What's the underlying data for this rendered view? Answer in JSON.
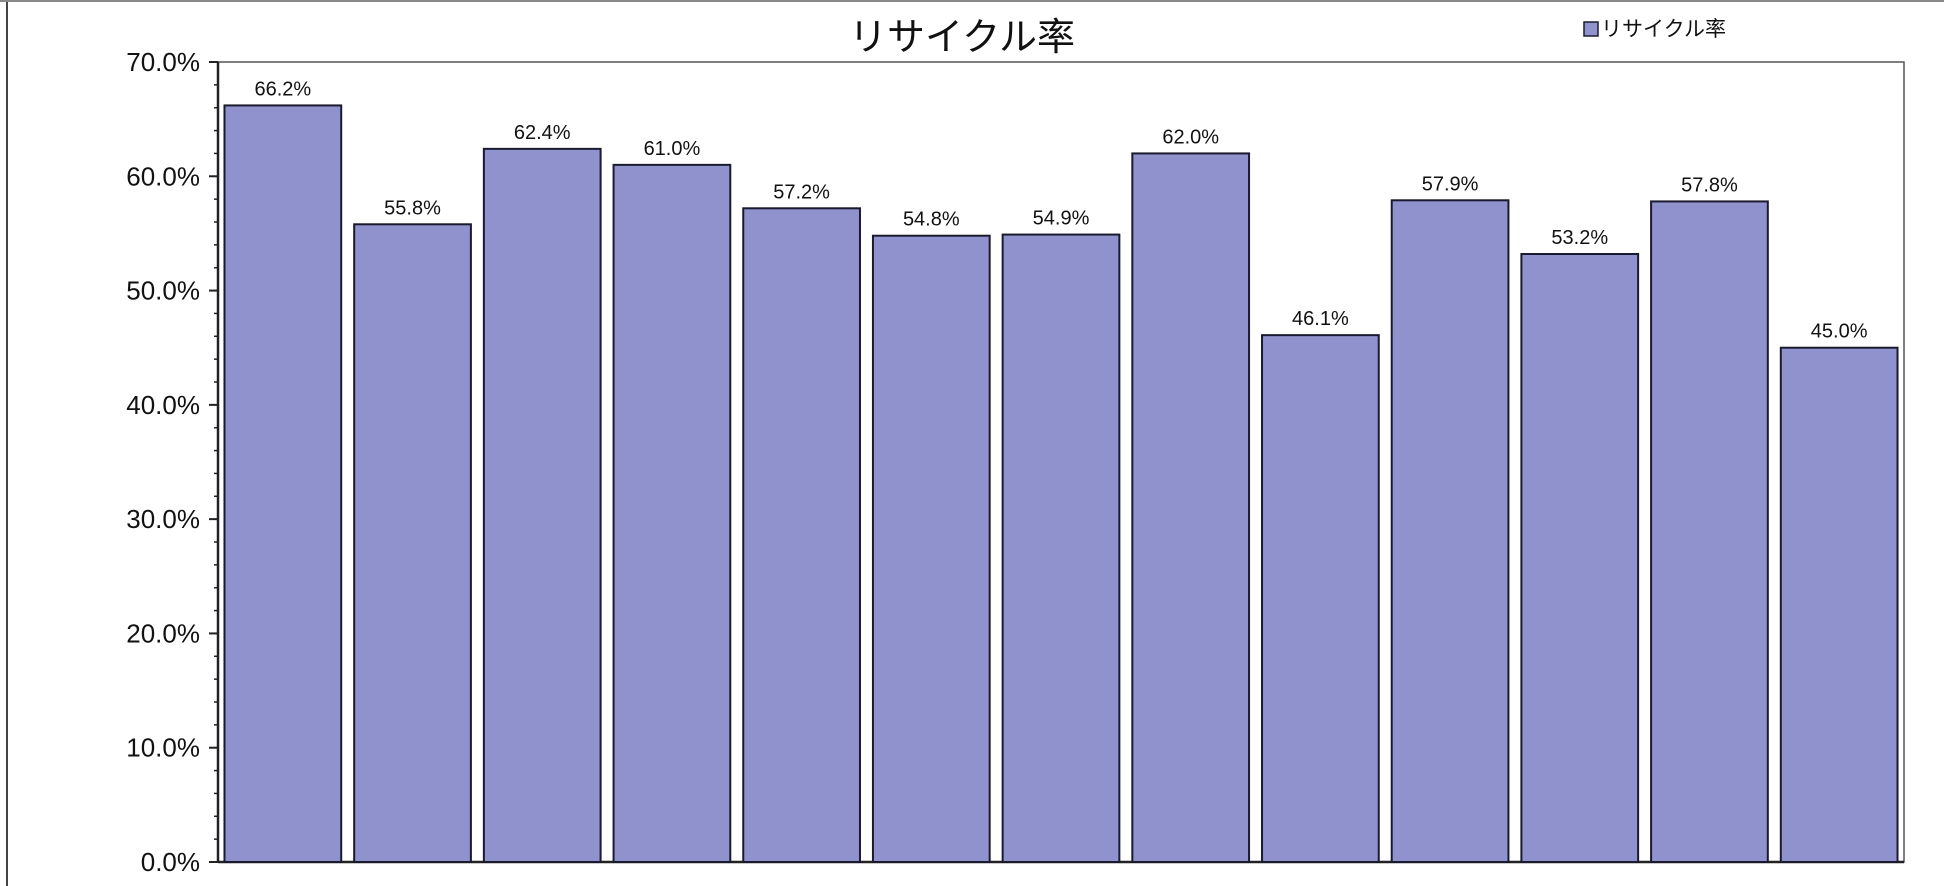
{
  "chart_data": {
    "type": "bar",
    "title": "リサイクル率",
    "xlabel": "",
    "ylabel": "",
    "categories": [
      "",
      "",
      "",
      "",
      "",
      "",
      "",
      "",
      "",
      "",
      "",
      "",
      ""
    ],
    "series": [
      {
        "name": "リサイクル率",
        "values": [
          66.2,
          55.8,
          62.4,
          61.0,
          57.2,
          54.8,
          54.9,
          62.0,
          46.1,
          57.9,
          53.2,
          57.8,
          45.0
        ],
        "data_labels": [
          "66.2%",
          "55.8%",
          "62.4%",
          "61.0%",
          "57.2%",
          "54.8%",
          "54.9%",
          "62.0%",
          "46.1%",
          "57.9%",
          "53.2%",
          "57.8%",
          "45.0%"
        ]
      }
    ],
    "ylim": [
      0,
      70
    ],
    "yticks": [
      0,
      10,
      20,
      30,
      40,
      50,
      60,
      70
    ],
    "ytick_labels": [
      "0.0%",
      "10.0%",
      "20.0%",
      "30.0%",
      "40.0%",
      "50.0%",
      "60.0%",
      "70.0%"
    ],
    "grid": false,
    "legend_position": "top-right",
    "colors": {
      "bar_fill": "#8f92cc",
      "bar_stroke": "#1a1a2e",
      "axis": "#222222",
      "legend_swatch": "#8f92cc"
    }
  }
}
